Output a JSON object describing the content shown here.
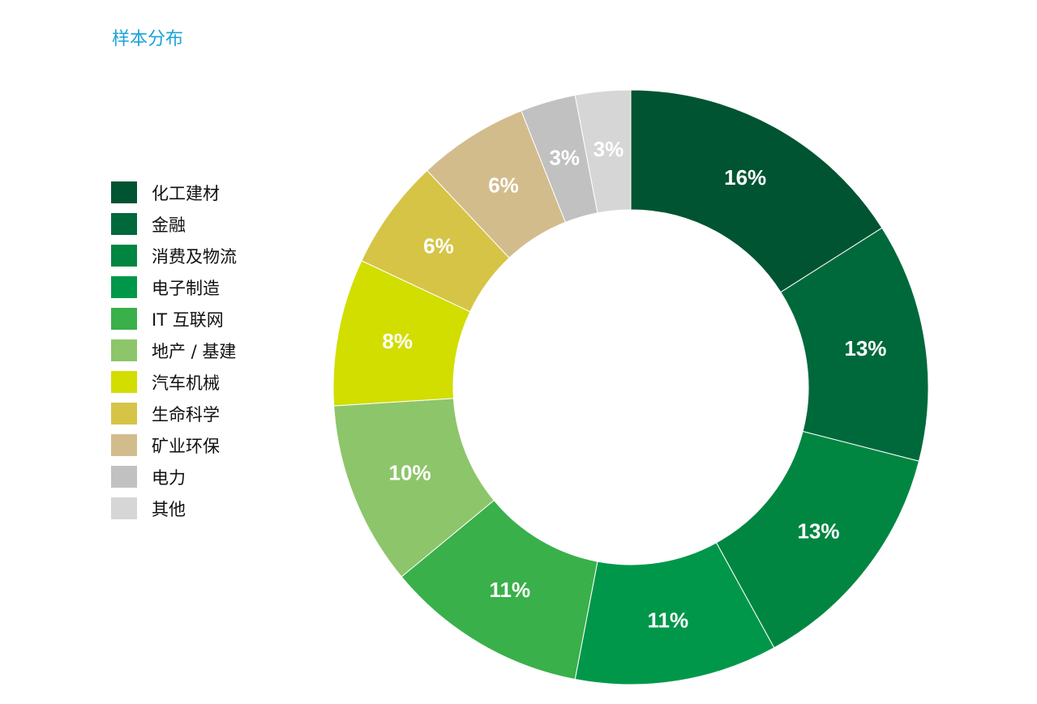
{
  "title": "样本分布",
  "chart_data": {
    "type": "pie",
    "subtype": "donut",
    "title": "样本分布",
    "legend_position": "left",
    "categories": [
      "化工建材",
      "金融",
      "消费及物流",
      "电子制造",
      "IT 互联网",
      "地产 / 基建",
      "汽车机械",
      "生命科学",
      "矿业环保",
      "电力",
      "其他"
    ],
    "values": [
      16,
      13,
      13,
      11,
      11,
      10,
      8,
      6,
      6,
      3,
      3
    ],
    "labels": [
      "16%",
      "13%",
      "13%",
      "11%",
      "11%",
      "10%",
      "8%",
      "6%",
      "6%",
      "3%",
      "3%"
    ],
    "colors": [
      "#005432",
      "#00693c",
      "#008641",
      "#00974a",
      "#39b04a",
      "#8dc56b",
      "#d2dd00",
      "#d6c446",
      "#d3bc8c",
      "#c0c1c0",
      "#d5d6d5"
    ]
  }
}
